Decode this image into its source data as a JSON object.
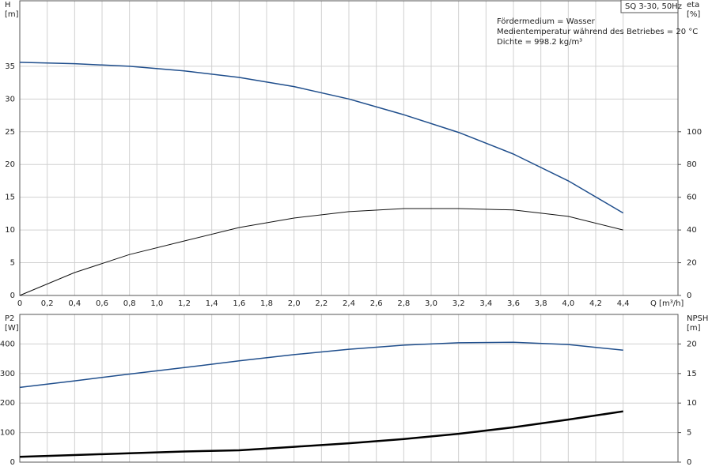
{
  "chart_data": [
    {
      "type": "line",
      "ylabel": [
        "H",
        "[m]"
      ],
      "y2label": [
        "eta",
        "[%]"
      ],
      "xlabel": "Q [m³/h]",
      "badge": "SQ 3-30, 50Hz",
      "annotations": [
        "Fördermedium = Wasser",
        "Medientemperatur während des Betriebes = 20 °C",
        "Dichte = 998.2 kg/m³"
      ],
      "x": [
        0,
        0.4,
        0.8,
        1.2,
        1.6,
        2.0,
        2.4,
        2.8,
        3.2,
        3.6,
        4.0,
        4.4
      ],
      "xlim": [
        0,
        4.8
      ],
      "xticks": [
        0,
        {
          "value": 0.2,
          "label": "0,2"
        },
        {
          "value": 0.4,
          "label": "0,4"
        },
        {
          "value": 0.6,
          "label": "0,6"
        },
        {
          "value": 0.8,
          "label": "0,8"
        },
        {
          "value": 1.0,
          "label": "1,0"
        },
        {
          "value": 1.2,
          "label": "1,2"
        },
        {
          "value": 1.4,
          "label": "1,4"
        },
        {
          "value": 1.6,
          "label": "1,6"
        },
        {
          "value": 1.8,
          "label": "1,8"
        },
        {
          "value": 2.0,
          "label": "2,0"
        },
        {
          "value": 2.2,
          "label": "2,2"
        },
        {
          "value": 2.4,
          "label": "2,4"
        },
        {
          "value": 2.6,
          "label": "2,6"
        },
        {
          "value": 2.8,
          "label": "2,8"
        },
        {
          "value": 3.0,
          "label": "3,0"
        },
        {
          "value": 3.2,
          "label": "3,2"
        },
        {
          "value": 3.4,
          "label": "3,4"
        },
        {
          "value": 3.6,
          "label": "3,6"
        },
        {
          "value": 3.8,
          "label": "3,8"
        },
        {
          "value": 4.0,
          "label": "4,0"
        },
        {
          "value": 4.2,
          "label": "4,2"
        },
        {
          "value": 4.4,
          "label": "4,4"
        }
      ],
      "ylim": [
        0,
        45
      ],
      "yticks": [
        0,
        5,
        10,
        15,
        20,
        25,
        30,
        35
      ],
      "y2lim": [
        0,
        180
      ],
      "y2ticks": [
        0,
        20,
        40,
        60,
        80,
        100
      ],
      "grid": true,
      "series": [
        {
          "color": "#1f4e8c",
          "width": 1.5,
          "values": [
            35.6,
            35.4,
            35.0,
            34.3,
            33.3,
            31.9,
            30.0,
            27.6,
            24.9,
            21.6,
            17.5,
            12.6
          ]
        },
        {
          "color": "#111111",
          "width": 1,
          "axis": "y2",
          "values": [
            0,
            14,
            25,
            33.3,
            41.5,
            47.3,
            51.2,
            53.1,
            53.1,
            52.2,
            48.3,
            40
          ]
        }
      ]
    },
    {
      "type": "line",
      "ylabel": [
        "P2",
        "[W]"
      ],
      "y2label": [
        "NPSH",
        "[m]"
      ],
      "x": [
        0,
        0.4,
        0.8,
        1.2,
        1.6,
        2.0,
        2.4,
        2.8,
        3.2,
        3.6,
        4.0,
        4.4
      ],
      "xlim": [
        0,
        4.8
      ],
      "ylim": [
        0,
        500
      ],
      "yticks": [
        0,
        100,
        200,
        300,
        400
      ],
      "y2lim": [
        0,
        25
      ],
      "y2ticks": [
        0,
        5,
        10,
        15,
        20
      ],
      "grid": true,
      "series": [
        {
          "color": "#1f4e8c",
          "width": 1.5,
          "values": [
            253,
            275,
            298,
            320,
            343,
            364,
            382,
            396,
            404,
            406,
            398,
            379
          ]
        },
        {
          "color": "#000000",
          "width": 2.5,
          "axis": "y2",
          "values": [
            0.9,
            1.2,
            1.5,
            1.8,
            2.0,
            2.6,
            3.2,
            3.9,
            4.8,
            5.9,
            7.2,
            8.6
          ]
        }
      ]
    }
  ]
}
